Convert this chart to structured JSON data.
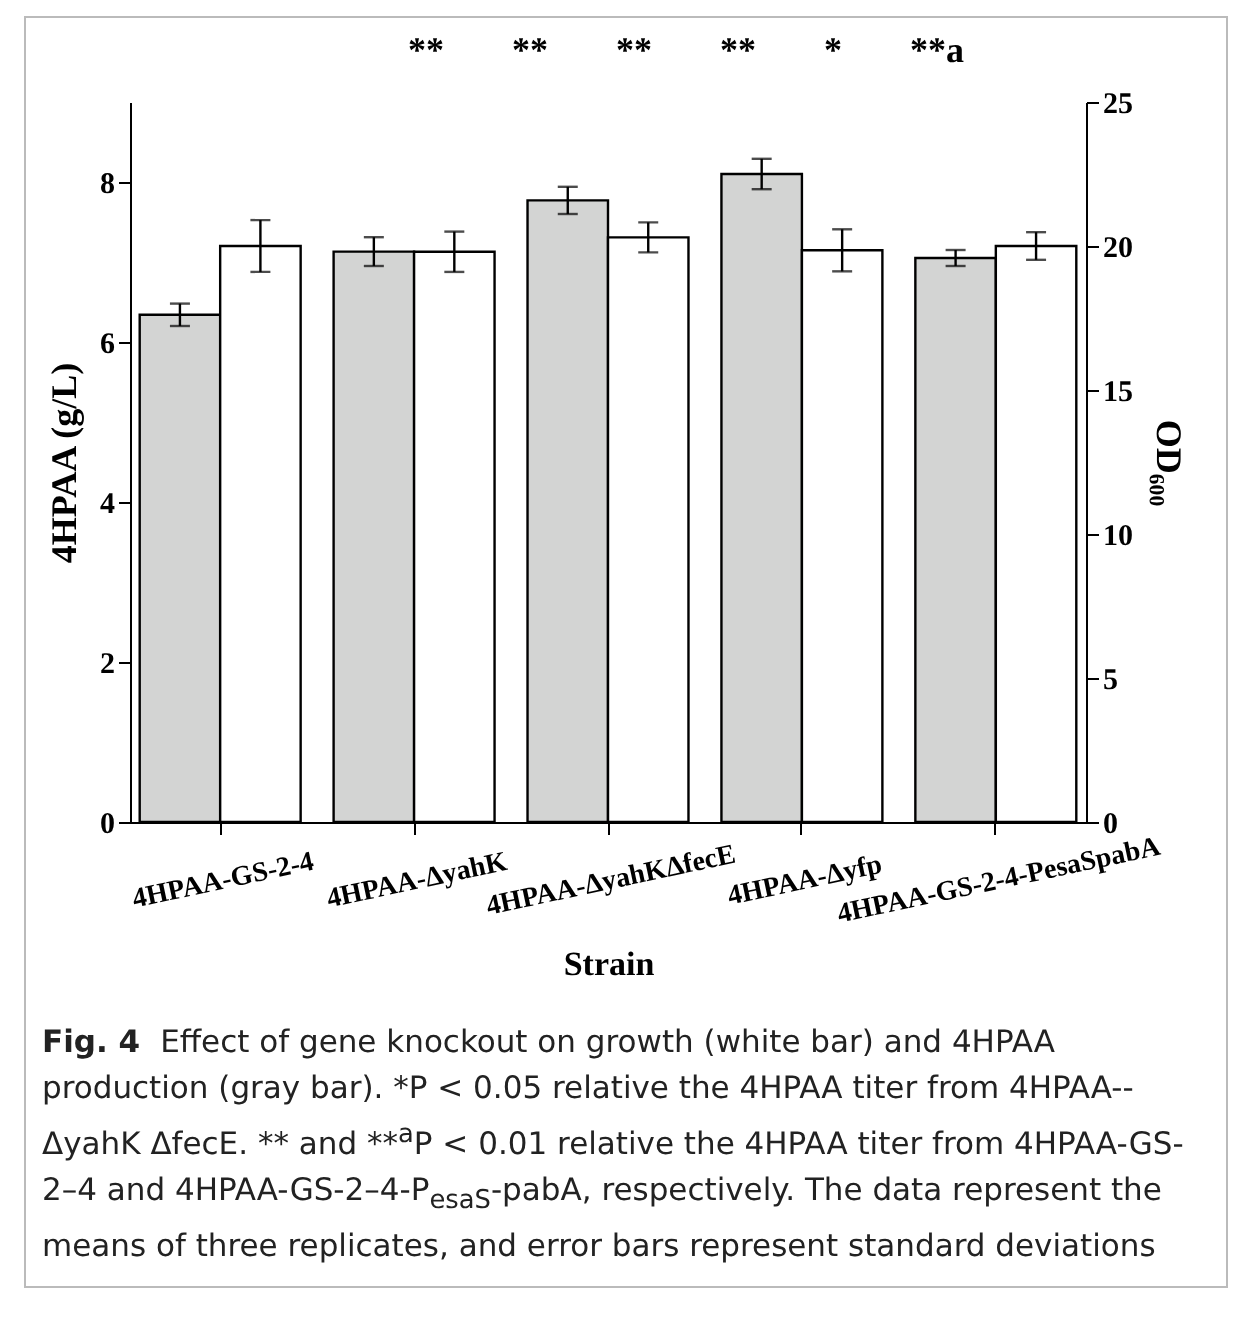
{
  "chart_data": {
    "type": "bar",
    "title": "Fig. 4",
    "subtitle": "Effect of gene knockout on growth (white bar) and 4HPAA production (gray bar). *P < 0.05 relative the 4HPAA titer from 4HPAA--ΔyahK ΔfecE. ** and **$^{a}$P < 0.01 relative the 4HPAA titer from 4HPAA-GS-2–4 and 4HPAA-GS-2–4-P$_{esaS}$-pabA, respectively. The data represent the means of three replicates, and error bars represent standard deviations",
    "xlabel": "Strain",
    "ylabel": "4HPAA (g/L)",
    "y2label": "OD₆₀₀",
    "categories": [
      "4HPAA-GS-2-4",
      "4HPAA-ΔyahK",
      "4HPAA-ΔyahKΔfecE",
      "4HPAA-Δyfp",
      "4HPAA-GS-2-4-PesaSpabA"
    ],
    "series": [
      {
        "color": "#d3d4d3",
        "values": [
          6.34,
          7.13,
          7.77,
          8.1,
          7.05
        ],
        "errors": [
          0.14,
          0.18,
          0.17,
          0.19,
          0.1
        ]
      },
      {
        "color": "#ffffff",
        "axis": "y2",
        "values": [
          20.0,
          19.8,
          20.3,
          19.85,
          20.0
        ],
        "errors": [
          0.9,
          0.7,
          0.52,
          0.73,
          0.48
        ]
      }
    ],
    "ylim": [
      0,
      9
    ],
    "yticks": [
      0,
      2,
      4,
      6,
      8
    ],
    "y2lim": [
      0,
      25
    ],
    "y2ticks": [
      0,
      5,
      10,
      15,
      20,
      25
    ],
    "grid": false,
    "annotations": [
      "**",
      "**",
      "**",
      "**",
      "*",
      "**a"
    ]
  }
}
